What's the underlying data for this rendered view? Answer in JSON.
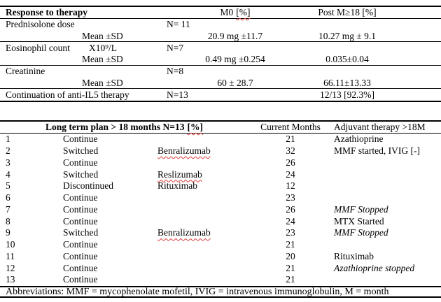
{
  "table1": {
    "header": {
      "title": "Response to therapy",
      "m0_label": "M0",
      "m0_pct": "[%]",
      "post_label": "Post M≥18 [%]"
    },
    "prednisolone": {
      "label": "Prednisolone dose",
      "n": "N= 11",
      "stat": "Mean ±SD",
      "m0": "20.9 mg ±11.7",
      "post": "10.27 mg ± 9.1"
    },
    "eosinophil": {
      "label": "Eosinophil count",
      "unit": "X10⁹/L",
      "n": "N=7",
      "stat": "Mean ±SD",
      "m0": "0.49 mg ±0.254",
      "post": "0.035±0.04"
    },
    "creatinine": {
      "label": "Creatinine",
      "n": "N=8",
      "stat": "Mean ±SD",
      "m0": "60 ± 28.7",
      "post": "66.11±13.33"
    },
    "continuation": {
      "label": "Continuation of anti-IL5 therapy",
      "n": "N=13",
      "post": "12/13 [92.3%]"
    }
  },
  "table2": {
    "header": {
      "plan_label": "Long term plan > 18 months N=13",
      "plan_pct": "[%]",
      "months_label": "Current Months",
      "adjuvant_label": "Adjuvant therapy >18M"
    },
    "rows": [
      {
        "num": "1",
        "status": "Continue",
        "drug": "",
        "months": "21",
        "adjuvant": "Azathioprine"
      },
      {
        "num": "2",
        "status": "Switched",
        "drug": "Benralizumab",
        "months": "32",
        "adjuvant": "MMF started, IVIG [-]"
      },
      {
        "num": "3",
        "status": "Continue",
        "drug": "",
        "months": "26",
        "adjuvant": ""
      },
      {
        "num": "4",
        "status": "Switched",
        "drug": "Reslizumab",
        "months": "24",
        "adjuvant": ""
      },
      {
        "num": "5",
        "status": "Discontinued",
        "drug": "Rituximab",
        "months": "12",
        "adjuvant": ""
      },
      {
        "num": "6",
        "status": "Continue",
        "drug": "",
        "months": "23",
        "adjuvant": ""
      },
      {
        "num": "7",
        "status": "Continue",
        "drug": "",
        "months": "26",
        "adjuvant": "MMF Stopped"
      },
      {
        "num": "8",
        "status": "Continue",
        "drug": "",
        "months": "24",
        "adjuvant": "MTX Started"
      },
      {
        "num": "9",
        "status": "Switched",
        "drug": "Benralizumab",
        "months": "23",
        "adjuvant": "MMF Stopped"
      },
      {
        "num": "10",
        "status": "Continue",
        "drug": "",
        "months": "21",
        "adjuvant": ""
      },
      {
        "num": "11",
        "status": "Continue",
        "drug": "",
        "months": "20",
        "adjuvant": "Rituximab"
      },
      {
        "num": "12",
        "status": "Continue",
        "drug": "",
        "months": "21",
        "adjuvant": "Azathioprine stopped"
      },
      {
        "num": "13",
        "status": "Continue",
        "drug": "",
        "months": "21",
        "adjuvant": ""
      }
    ]
  },
  "footer": {
    "abbreviations": "Abbreviations: MMF = mycophenolate mofetil, IVIG = intravenous immunoglobulin, M = month"
  }
}
